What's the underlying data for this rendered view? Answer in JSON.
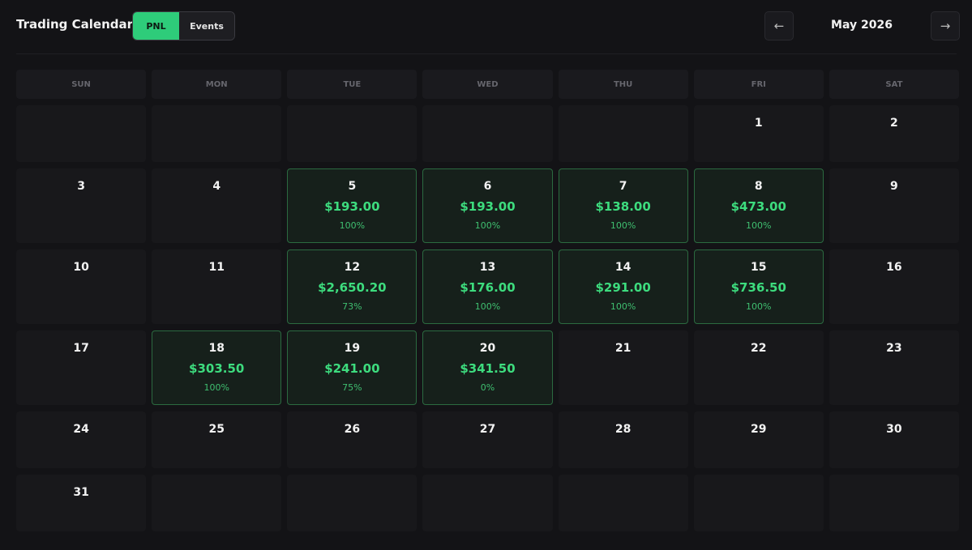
{
  "header": {
    "title": "Trading Calendar",
    "tabs": [
      "PNL",
      "Events"
    ],
    "prev": "←",
    "month": "May 2026",
    "next": "→"
  },
  "weekdays": [
    "SUN",
    "MON",
    "TUE",
    "WED",
    "THU",
    "FRI",
    "SAT"
  ],
  "weeks": [
    [
      null,
      null,
      null,
      null,
      null,
      {
        "day": 1
      },
      {
        "day": 2
      }
    ],
    [
      {
        "day": 3
      },
      {
        "day": 4
      },
      {
        "day": 5,
        "pnl": "$193.00",
        "rate": "100%"
      },
      {
        "day": 6,
        "pnl": "$193.00",
        "rate": "100%"
      },
      {
        "day": 7,
        "pnl": "$138.00",
        "rate": "100%"
      },
      {
        "day": 8,
        "pnl": "$473.00",
        "rate": "100%"
      },
      {
        "day": 9
      }
    ],
    [
      {
        "day": 10
      },
      {
        "day": 11
      },
      {
        "day": 12,
        "pnl": "$2,650.20",
        "rate": "73%"
      },
      {
        "day": 13,
        "pnl": "$176.00",
        "rate": "100%"
      },
      {
        "day": 14,
        "pnl": "$291.00",
        "rate": "100%"
      },
      {
        "day": 15,
        "pnl": "$736.50",
        "rate": "100%"
      },
      {
        "day": 16
      }
    ],
    [
      {
        "day": 17
      },
      {
        "day": 18,
        "pnl": "$303.50",
        "rate": "100%"
      },
      {
        "day": 19,
        "pnl": "$241.00",
        "rate": "75%"
      },
      {
        "day": 20,
        "pnl": "$341.50",
        "rate": "0%"
      },
      {
        "day": 21
      },
      {
        "day": 22
      },
      {
        "day": 23
      }
    ],
    [
      {
        "day": 24
      },
      {
        "day": 25
      },
      {
        "day": 26
      },
      {
        "day": 27
      },
      {
        "day": 28
      },
      {
        "day": 29
      },
      {
        "day": 30
      }
    ],
    [
      {
        "day": 31
      },
      null,
      null,
      null,
      null,
      null,
      null
    ]
  ]
}
